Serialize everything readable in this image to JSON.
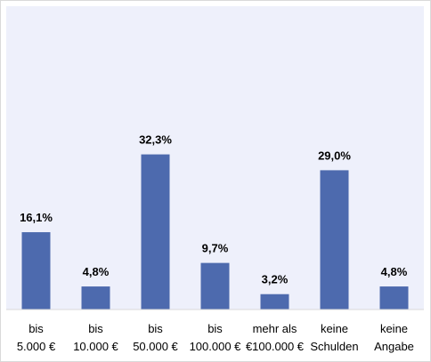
{
  "chart_data": {
    "type": "bar",
    "categories": [
      [
        "bis",
        "5.000 €"
      ],
      [
        "bis",
        "10.000 €"
      ],
      [
        "bis",
        "50.000 €"
      ],
      [
        "bis",
        "100.000 €"
      ],
      [
        "mehr als",
        "€100.000 €"
      ],
      [
        "keine",
        "Schulden"
      ],
      [
        "keine",
        "Angabe"
      ]
    ],
    "values": [
      16.1,
      4.8,
      32.3,
      9.7,
      3.2,
      29.0,
      4.8
    ],
    "data_labels": [
      "16,1%",
      "4,8%",
      "32,3%",
      "9,7%",
      "3,2%",
      "29,0%",
      "4,8%"
    ],
    "title": "",
    "xlabel": "",
    "ylabel": "",
    "ylim": [
      0,
      50
    ],
    "grid": false,
    "legend": "none",
    "colors": {
      "bar": "#4d6aae",
      "plot_background": "#eef0fb",
      "axis_line": "#d9d9d9"
    }
  }
}
